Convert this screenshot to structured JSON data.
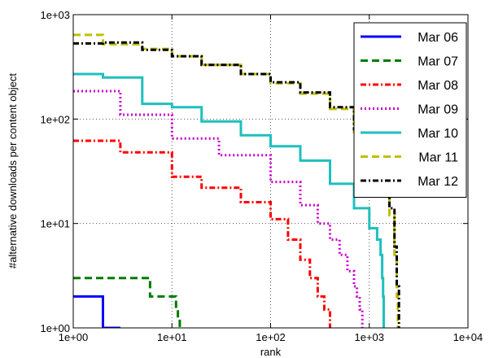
{
  "chart_data": {
    "type": "line",
    "xlabel": "rank",
    "ylabel": "#alternative downloads per content object",
    "xscale": "log",
    "yscale": "log",
    "xlim": [
      1,
      10000
    ],
    "ylim": [
      1,
      1000
    ],
    "xtick_labels": [
      "1e+00",
      "1e+01",
      "1e+02",
      "1e+03",
      "1e+04"
    ],
    "ytick_labels": [
      "1e+00",
      "1e+01",
      "1e+02",
      "1e+03"
    ],
    "grid": true,
    "legend_position": "top-right",
    "series": [
      {
        "name": "Mar 06",
        "color": "#0000ff",
        "dash": "solid",
        "x": [
          1,
          2,
          3
        ],
        "y": [
          2,
          1,
          1
        ]
      },
      {
        "name": "Mar 07",
        "color": "#007a00",
        "dash": "dashed",
        "x": [
          1,
          5,
          6,
          10,
          11,
          11.5,
          12
        ],
        "y": [
          3,
          3,
          2,
          2,
          1.5,
          1.2,
          1
        ]
      },
      {
        "name": "Mar 08",
        "color": "#ff0000",
        "dash": "dashdot",
        "x": [
          1,
          3,
          10,
          20,
          50,
          100,
          150,
          200,
          250,
          300,
          350,
          400
        ],
        "y": [
          62,
          48,
          28,
          22,
          16,
          11,
          7,
          4.5,
          3,
          2,
          1.5,
          1
        ]
      },
      {
        "name": "Mar 09",
        "color": "#cc00cc",
        "dash": "dotted",
        "x": [
          1,
          3,
          10,
          30,
          100,
          200,
          300,
          400,
          500,
          600,
          700,
          750,
          800,
          850
        ],
        "y": [
          185,
          110,
          65,
          45,
          25,
          15,
          10,
          7,
          5,
          3.5,
          2.5,
          2,
          1.5,
          1
        ]
      },
      {
        "name": "Mar 10",
        "color": "#1fbfbf",
        "dash": "solid",
        "x": [
          1,
          2,
          5,
          10,
          20,
          50,
          100,
          200,
          400,
          700,
          1000,
          1200,
          1300,
          1350,
          1380,
          1400
        ],
        "y": [
          270,
          250,
          140,
          130,
          95,
          70,
          55,
          40,
          24,
          14,
          9,
          7,
          5,
          3,
          2,
          1
        ]
      },
      {
        "name": "Mar 11",
        "color": "#bfbf00",
        "dash": "dashed",
        "x": [
          1,
          2,
          5,
          10,
          20,
          50,
          100,
          200,
          400,
          700,
          1000,
          1300,
          1600,
          1800,
          1900,
          1950
        ],
        "y": [
          640,
          520,
          470,
          400,
          330,
          270,
          220,
          175,
          125,
          75,
          50,
          28,
          12,
          5,
          2,
          1
        ]
      },
      {
        "name": "Mar 12",
        "color": "#000000",
        "dash": "dashdot",
        "x": [
          1,
          2,
          5,
          10,
          20,
          50,
          100,
          200,
          400,
          700,
          1000,
          1300,
          1600,
          1800,
          1900,
          2000
        ],
        "y": [
          530,
          540,
          460,
          400,
          330,
          270,
          225,
          180,
          130,
          80,
          55,
          30,
          14,
          6,
          2.5,
          1
        ]
      }
    ]
  }
}
